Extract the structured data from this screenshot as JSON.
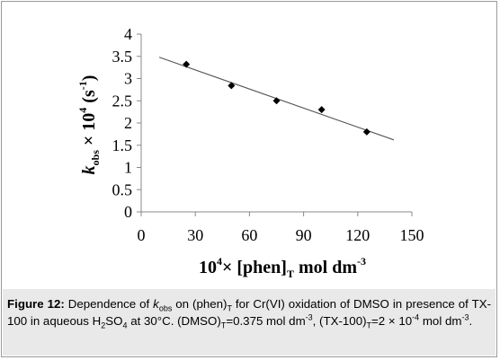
{
  "chart_data": {
    "type": "scatter",
    "x": [
      25,
      50,
      75,
      100,
      125
    ],
    "y": [
      3.32,
      2.84,
      2.5,
      2.3,
      1.8
    ],
    "trendline": {
      "x": [
        10,
        140
      ],
      "y": [
        3.48,
        1.62
      ]
    },
    "xlim": [
      0,
      150
    ],
    "ylim": [
      0,
      4
    ],
    "xticks": [
      "0",
      "30",
      "60",
      "90",
      "120",
      "150"
    ],
    "yticks": [
      "0",
      "0.5",
      "1",
      "1.5",
      "2",
      "2.5",
      "3",
      "3.5",
      "4"
    ],
    "xlabel": {
      "pre": "10",
      "sup": "4",
      "mid": "× [phen]",
      "sub": "T",
      "post": " mol dm",
      "sup2": "-3"
    },
    "ylabel": {
      "k": "k",
      "sub": "obs",
      "mid": " × 10",
      "sup": "4",
      "unit": " (s",
      "usup": "-1",
      "uend": ")"
    },
    "grid": false,
    "marker_color": "#000000",
    "line_color": "#555555"
  },
  "caption": {
    "label": "Figure 12:",
    "t1": " Dependence of ",
    "k": "k",
    "k_sub": "obs",
    "t2": " on (phen)",
    "t2_sub": "T",
    "t3": " for Cr(VI) oxidation of DMSO in presence of TX-100 in aqueous H",
    "h_sub": "2",
    "t4": "SO",
    "so_sub": "4",
    "t5": " at 30°C. (DMSO)",
    "d_sub": "T",
    "t6": "=0.375 mol dm",
    "t6_sup": "-3",
    "t7": ", (TX-100)",
    "tx_sub": "T",
    "t8": "=2 × 10",
    "t8_sup": "-4",
    "t9": " mol dm",
    "t9_sup": "-3",
    "t10": "."
  }
}
